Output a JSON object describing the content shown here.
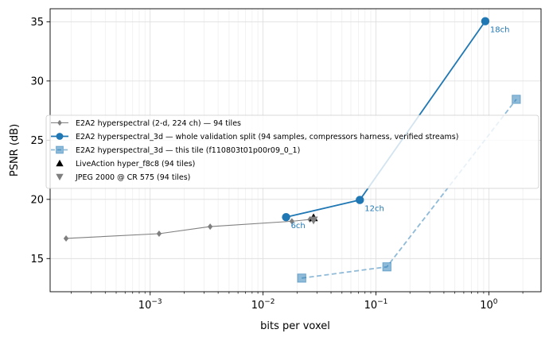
{
  "chart_data": {
    "type": "line",
    "xlabel": "bits per voxel",
    "ylabel": "PSNR (dB)",
    "xscale": "log",
    "xlim": [
      0.00013,
      2.9
    ],
    "ylim": [
      12.2,
      36.1
    ],
    "grid": true,
    "legend_position": "center-right",
    "x_ticks": [
      {
        "value": 0.001,
        "base": "10",
        "exp": "−3"
      },
      {
        "value": 0.01,
        "base": "10",
        "exp": "−2"
      },
      {
        "value": 0.1,
        "base": "10",
        "exp": "−1"
      },
      {
        "value": 1,
        "base": "10",
        "exp": "0"
      }
    ],
    "y_ticks": [
      15,
      20,
      25,
      30,
      35
    ],
    "series": [
      {
        "name": "E2A2 hyperspectral (2-d, 224 ch) — 94 tiles",
        "color": "#7f7f7f",
        "marker": "diamond",
        "line": "solid",
        "opacity": 1,
        "points": [
          {
            "x": 0.00018,
            "y": 16.7
          },
          {
            "x": 0.0012,
            "y": 17.1
          },
          {
            "x": 0.0034,
            "y": 17.7
          },
          {
            "x": 0.018,
            "y": 18.15
          },
          {
            "x": 0.026,
            "y": 18.3
          }
        ]
      },
      {
        "name": "E2A2 hyperspectral_3d — whole validation split (94 samples, compressors harness, verified streams)",
        "color": "#1f77b4",
        "marker": "circle",
        "line": "solid",
        "opacity": 1,
        "points": [
          {
            "x": 0.016,
            "y": 18.5,
            "label": "6ch"
          },
          {
            "x": 0.072,
            "y": 19.95,
            "label": "12ch"
          },
          {
            "x": 0.93,
            "y": 35.05,
            "label": "18ch"
          }
        ]
      },
      {
        "name": "E2A2 hyperspectral_3d — this tile (f110803t01p00r09_0_1)",
        "color": "#1f77b4",
        "marker": "square",
        "line": "dashed",
        "opacity": 0.5,
        "points": [
          {
            "x": 0.022,
            "y": 13.35
          },
          {
            "x": 0.125,
            "y": 14.3
          },
          {
            "x": 1.75,
            "y": 28.45
          }
        ]
      },
      {
        "name": "LiveAction hyper_f8c8 (94 tiles)",
        "color": "#000000",
        "marker": "triangle-up",
        "line": "none",
        "opacity": 1,
        "points": [
          {
            "x": 0.028,
            "y": 18.45
          }
        ]
      },
      {
        "name": "JPEG 2000 @ CR 575 (94 tiles)",
        "color": "#7f7f7f",
        "marker": "triangle-down",
        "line": "none",
        "opacity": 1,
        "points": [
          {
            "x": 0.028,
            "y": 18.25
          }
        ]
      }
    ]
  }
}
